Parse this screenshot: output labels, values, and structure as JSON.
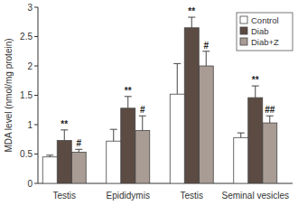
{
  "chart_data": {
    "type": "bar",
    "y_label": "MDA level (nmol/mg protein)",
    "categories": [
      "Testis",
      "Epididymis",
      "Testis",
      "Seminal vesicles"
    ],
    "series": [
      {
        "name": "Control",
        "color": "#ffffff",
        "values": [
          0.45,
          0.72,
          1.52,
          0.78
        ],
        "errors": [
          0.03,
          0.2,
          0.52,
          0.08
        ]
      },
      {
        "name": "Diab",
        "color": "#5b4b43",
        "values": [
          0.73,
          1.28,
          2.65,
          1.46
        ],
        "errors": [
          0.18,
          0.2,
          0.18,
          0.2
        ],
        "annotations": [
          "**",
          "**",
          "**",
          "**"
        ]
      },
      {
        "name": "Diab+Z",
        "color": "#a89c94",
        "values": [
          0.53,
          0.9,
          2.0,
          1.03
        ],
        "errors": [
          0.05,
          0.25,
          0.25,
          0.12
        ],
        "annotations": [
          "#",
          "#",
          "#",
          "##"
        ]
      }
    ],
    "ylim": [
      0,
      3
    ],
    "yticks": [
      0,
      0.5,
      1,
      1.5,
      2,
      2.5,
      3
    ],
    "grid": false,
    "legend": "top-right"
  }
}
